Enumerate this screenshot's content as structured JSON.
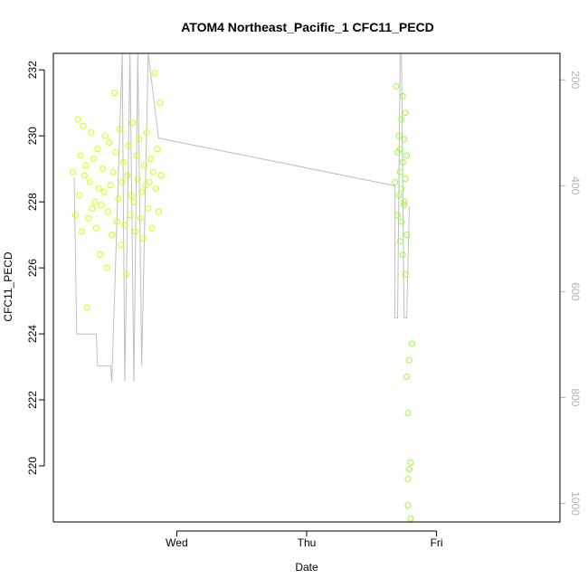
{
  "chart_data": {
    "type": "scatter",
    "title": "ATOM4 Northeast_Pacific_1 CFC11_PECD",
    "xlabel": "Date",
    "ylabel": "CFC11_PECD",
    "x_ticks": [
      {
        "label": "Wed",
        "t": 0.0
      },
      {
        "label": "Thu",
        "t": 1.0
      },
      {
        "label": "Fri",
        "t": 2.0
      }
    ],
    "x_range_days": [
      -0.95,
      2.95
    ],
    "ylim": [
      218.3,
      232.5
    ],
    "y_ticks": [
      220,
      222,
      224,
      226,
      228,
      230,
      232
    ],
    "y2_label": "",
    "y2_range": [
      1035,
      150
    ],
    "y2_ticks": [
      200,
      400,
      600,
      800,
      1000
    ],
    "grid": false,
    "legend": "none",
    "colors": {
      "points_group1": "#d4ff00",
      "points_group2": "#99ff33",
      "pressure_line": "#bebebe"
    },
    "series": [
      {
        "group": 1,
        "x_days": [
          -0.8,
          -0.78,
          -0.76,
          -0.75,
          -0.74,
          -0.73,
          -0.72,
          -0.71,
          -0.7,
          -0.69,
          -0.68,
          -0.67,
          -0.66,
          -0.65,
          -0.64,
          -0.63,
          -0.62,
          -0.61,
          -0.6,
          -0.59,
          -0.58,
          -0.57,
          -0.56,
          -0.55,
          -0.54,
          -0.53,
          -0.52,
          -0.51,
          -0.5,
          -0.49,
          -0.48,
          -0.47,
          -0.46,
          -0.45,
          -0.44,
          -0.43,
          -0.42,
          -0.41,
          -0.4,
          -0.39,
          -0.38,
          -0.37,
          -0.36,
          -0.35,
          -0.34,
          -0.33,
          -0.32,
          -0.31,
          -0.3,
          -0.29,
          -0.28,
          -0.27,
          -0.26,
          -0.25,
          -0.24,
          -0.23,
          -0.22,
          -0.21,
          -0.2,
          -0.19,
          -0.18,
          -0.17,
          -0.16,
          -0.15,
          -0.14,
          -0.13,
          -0.12
        ],
        "y": [
          228.9,
          227.6,
          230.5,
          228.2,
          229.4,
          227.1,
          230.3,
          228.8,
          229.1,
          224.8,
          227.5,
          228.6,
          230.1,
          227.8,
          229.3,
          228.0,
          227.2,
          229.6,
          228.4,
          226.4,
          227.9,
          229.0,
          228.3,
          230.0,
          226.0,
          227.7,
          229.8,
          228.5,
          227.0,
          228.9,
          231.3,
          229.5,
          227.4,
          228.1,
          230.2,
          226.7,
          228.6,
          229.2,
          227.3,
          225.8,
          228.8,
          229.7,
          227.6,
          228.2,
          230.4,
          228.0,
          227.1,
          229.4,
          228.7,
          229.9,
          227.5,
          228.3,
          226.9,
          229.1,
          228.5,
          230.1,
          227.8,
          228.6,
          229.3,
          227.2,
          228.9,
          231.9,
          228.4,
          229.6,
          227.7,
          231.0,
          228.8
        ]
      },
      {
        "group": 2,
        "x_days": [
          1.68,
          1.69,
          1.7,
          1.7,
          1.71,
          1.71,
          1.72,
          1.72,
          1.72,
          1.73,
          1.73,
          1.73,
          1.74,
          1.74,
          1.74,
          1.75,
          1.75,
          1.75,
          1.76,
          1.76,
          1.76,
          1.77,
          1.77,
          1.77,
          1.78,
          1.78,
          1.78,
          1.79,
          1.79,
          1.8,
          1.8,
          1.81
        ],
        "y": [
          228.6,
          231.5,
          227.6,
          229.5,
          228.2,
          230.0,
          226.8,
          228.9,
          229.6,
          227.4,
          230.5,
          228.4,
          226.4,
          229.2,
          231.2,
          228.0,
          229.9,
          227.9,
          230.7,
          225.8,
          228.7,
          229.4,
          227.0,
          222.7,
          221.6,
          219.6,
          218.8,
          223.2,
          219.9,
          220.1,
          218.4,
          223.7
        ]
      }
    ]
  }
}
